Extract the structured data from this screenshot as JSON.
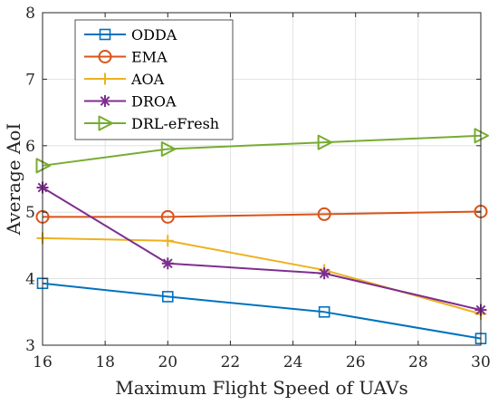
{
  "chart_data": {
    "type": "line",
    "title": "",
    "xlabel": "Maximum Flight Speed of UAVs",
    "ylabel": "Average AoI",
    "xlim": [
      16,
      30
    ],
    "ylim": [
      3,
      8
    ],
    "xticks": [
      16,
      18,
      20,
      22,
      24,
      26,
      28,
      30
    ],
    "yticks": [
      3,
      4,
      5,
      6,
      7,
      8
    ],
    "grid": true,
    "legend_position": "top-left",
    "x": [
      16,
      20,
      25,
      30
    ],
    "series": [
      {
        "name": "ODDA",
        "marker": "square",
        "color": "#0072BD",
        "values": [
          3.93,
          3.73,
          3.5,
          3.1
        ]
      },
      {
        "name": "EMA",
        "marker": "circle",
        "color": "#D95319",
        "values": [
          4.93,
          4.93,
          4.97,
          5.01
        ]
      },
      {
        "name": "AOA",
        "marker": "plus",
        "color": "#EDB120",
        "values": [
          4.61,
          4.57,
          4.13,
          3.47
        ]
      },
      {
        "name": "DROA",
        "marker": "asterisk",
        "color": "#7E2F8E",
        "values": [
          5.37,
          4.23,
          4.08,
          3.53
        ]
      },
      {
        "name": "DRL-eFresh",
        "marker": "triangle-right",
        "color": "#77AC30",
        "values": [
          5.7,
          5.95,
          6.05,
          6.15
        ]
      }
    ]
  }
}
